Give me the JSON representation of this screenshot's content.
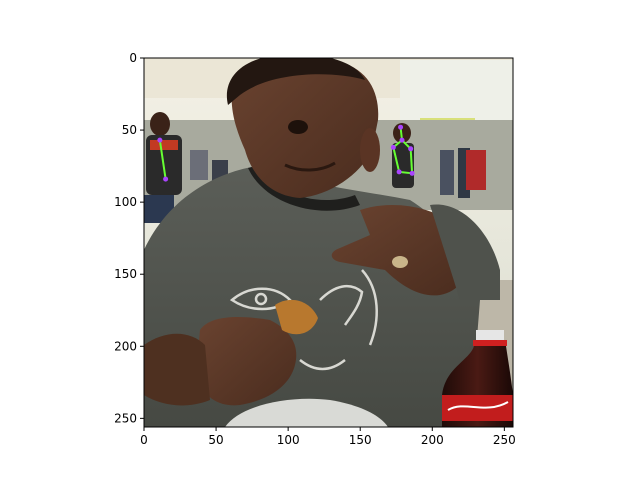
{
  "chart_data": {
    "type": "image",
    "image_size": [
      256,
      256
    ],
    "xlim": [
      0,
      256
    ],
    "ylim": [
      256,
      0
    ],
    "xticks": [
      0,
      50,
      100,
      150,
      200,
      250
    ],
    "yticks": [
      0,
      50,
      100,
      150,
      200,
      250
    ],
    "xtick_labels": [
      "0",
      "50",
      "100",
      "150",
      "200",
      "250"
    ],
    "ytick_labels": [
      "0",
      "50",
      "100",
      "150",
      "200",
      "250"
    ],
    "keypoints": [
      {
        "name": "head",
        "x": 178,
        "y": 48
      },
      {
        "name": "neck",
        "x": 179,
        "y": 57
      },
      {
        "name": "shoulder-left",
        "x": 173,
        "y": 62
      },
      {
        "name": "shoulder-right",
        "x": 185,
        "y": 63
      },
      {
        "name": "hip-left",
        "x": 177,
        "y": 79
      },
      {
        "name": "hip-right",
        "x": 186,
        "y": 80
      },
      {
        "name": "person2-head",
        "x": 11,
        "y": 57
      },
      {
        "name": "person2-hip",
        "x": 15,
        "y": 84
      }
    ],
    "skeleton": [
      [
        "head",
        "neck"
      ],
      [
        "neck",
        "shoulder-left"
      ],
      [
        "neck",
        "shoulder-right"
      ],
      [
        "shoulder-left",
        "hip-left"
      ],
      [
        "shoulder-right",
        "hip-right"
      ],
      [
        "hip-left",
        "hip-right"
      ],
      [
        "person2-head",
        "person2-hip"
      ]
    ]
  },
  "colors": {
    "skeleton": "#66ff33",
    "keypoint": "#aa44ff",
    "axes": "#000000"
  }
}
